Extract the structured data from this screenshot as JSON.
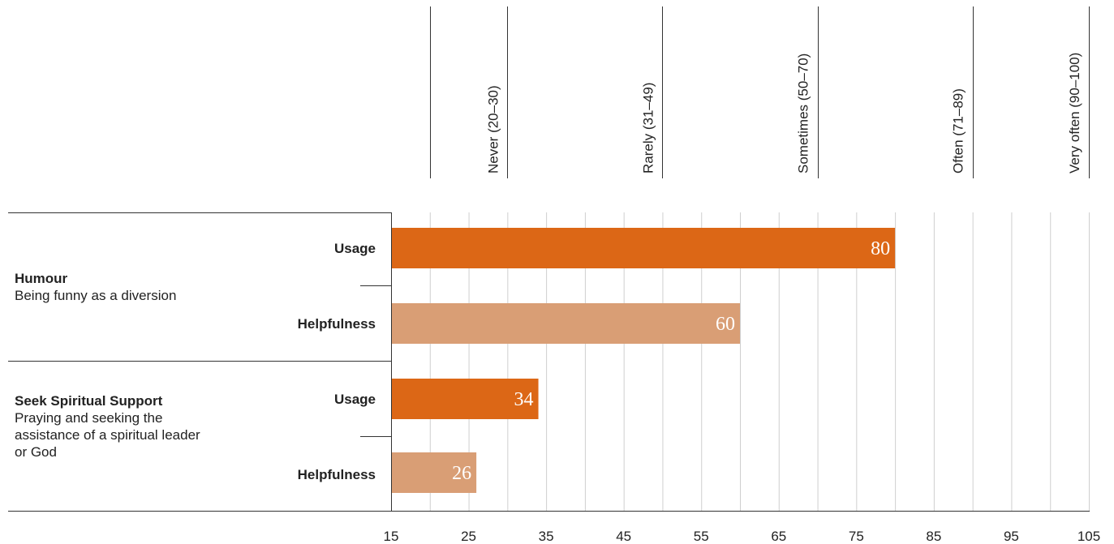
{
  "chart_data": {
    "type": "bar",
    "orientation": "horizontal",
    "xlim": [
      15,
      105
    ],
    "x_ticks": [
      "15",
      "25",
      "35",
      "45",
      "55",
      "65",
      "75",
      "85",
      "95",
      "105"
    ],
    "grid": true,
    "bands": [
      {
        "label": "Never (20–30)",
        "from": 20,
        "to": 30
      },
      {
        "label": "Rarely (31–49)",
        "from": 30,
        "to": 50
      },
      {
        "label": "Sometimes (50–70)",
        "from": 50,
        "to": 70
      },
      {
        "label": "Often (71–89)",
        "from": 70,
        "to": 90
      },
      {
        "label": "Very often (90–100)",
        "from": 90,
        "to": 105
      }
    ],
    "groups": [
      {
        "title": "Humour",
        "description": "Being funny as a diversion",
        "rows": [
          {
            "label": "Usage",
            "value": 80,
            "value_label": "80",
            "color": "#dc6716"
          },
          {
            "label": "Helpfulness",
            "value": 60,
            "value_label": "60",
            "color": "#d99e75"
          }
        ]
      },
      {
        "title": "Seek Spiritual Support",
        "description": "Praying and seeking the assistance of a spiritual leader or God",
        "rows": [
          {
            "label": "Usage",
            "value": 34,
            "value_label": "34",
            "color": "#dc6716"
          },
          {
            "label": "Helpfulness",
            "value": 26,
            "value_label": "26",
            "color": "#d99e75"
          }
        ]
      }
    ]
  }
}
